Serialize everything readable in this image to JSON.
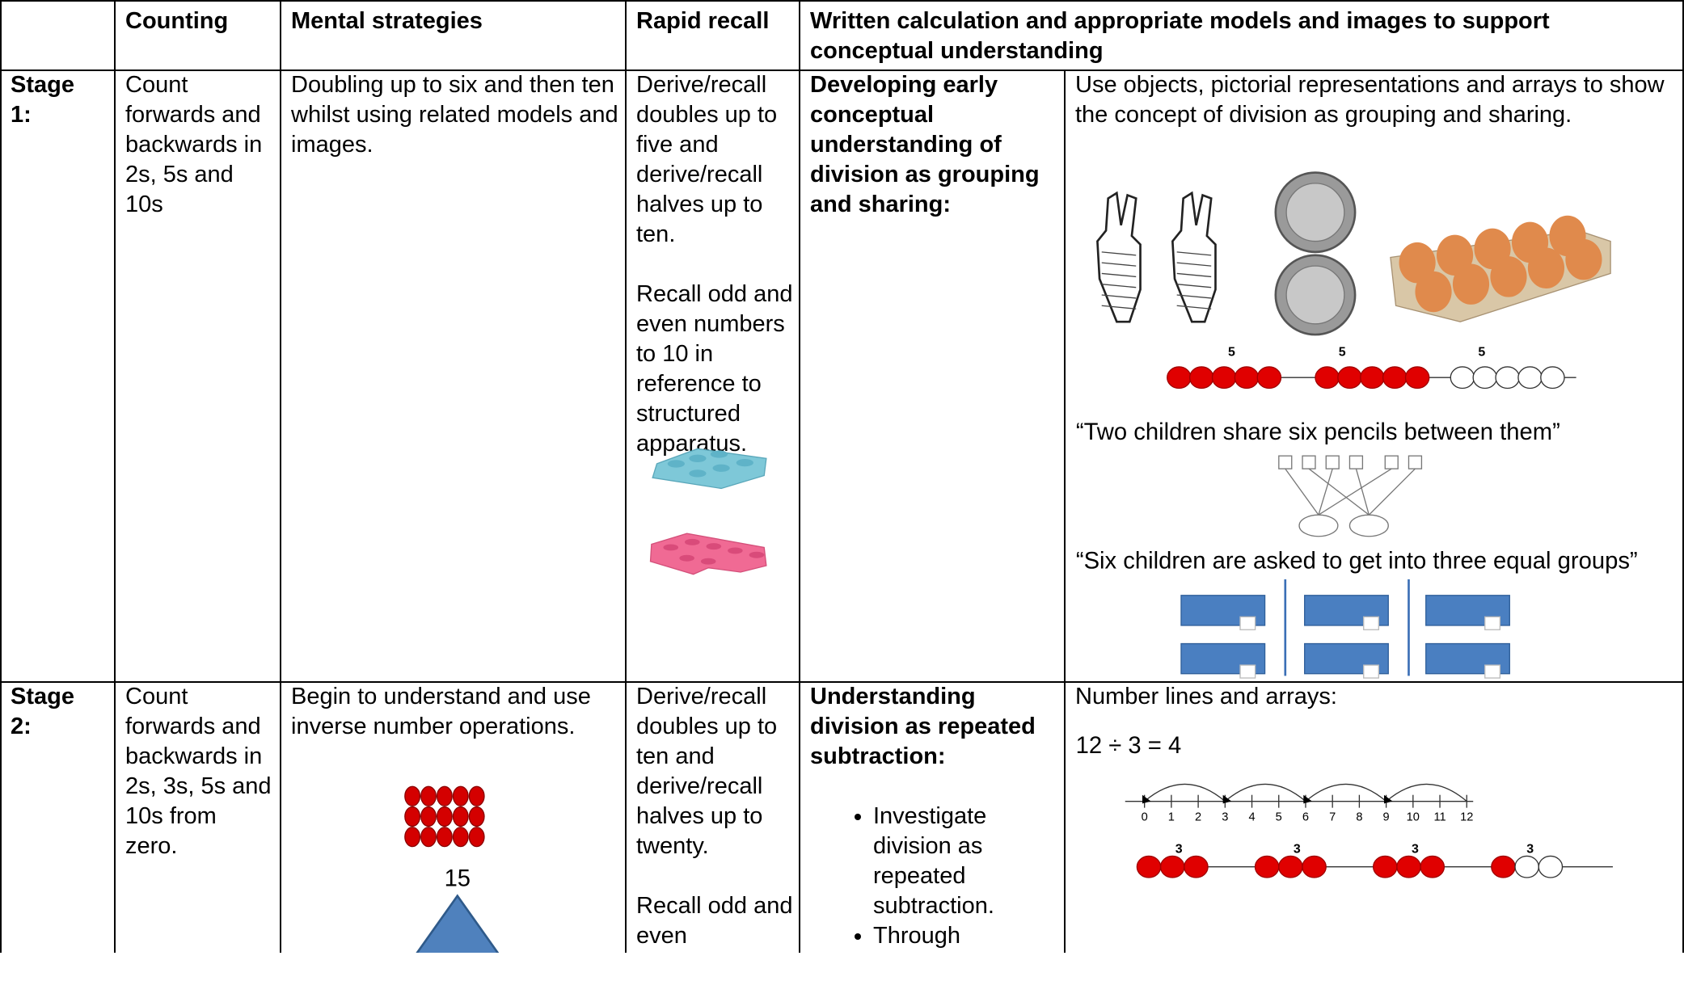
{
  "header": {
    "columns": [
      "Counting",
      "Mental strategies",
      "Rapid recall",
      "Written calculation and appropriate models and images to support conceptual understanding"
    ]
  },
  "stages": [
    {
      "stage": "Stage 1:",
      "counting": "Count forwards and backwards in 2s, 5s and 10s",
      "mental": "Doubling up to six and then ten whilst using related models and images.",
      "rapid_recall": [
        "Derive/recall doubles up to five and derive/recall halves up to ten.",
        "Recall odd and even numbers to 10 in reference to structured apparatus."
      ],
      "written_heading": "Developing early conceptual understanding of division as grouping and sharing:",
      "written_detail": "Use objects, pictorial representations and arrays to show the concept of division as grouping and sharing.",
      "bead_labels": [
        "5",
        "5",
        "5"
      ],
      "quotes": [
        "“Two children share six pencils between them”",
        "“Six children are asked to get into three equal groups”"
      ]
    },
    {
      "stage": "Stage 2:",
      "counting": "Count forwards and backwards in 2s, 3s, 5s and 10s from zero.",
      "mental": "Begin to understand and use inverse number operations.",
      "array_total": "15",
      "rapid_recall": [
        "Derive/recall doubles up to ten and derive/recall halves up to twenty.",
        "Recall odd and even"
      ],
      "written_heading": "Understanding division as repeated subtraction:",
      "written_bullets": [
        "Investigate division as repeated subtraction.",
        "Through"
      ],
      "written_detail": "Number lines and arrays:",
      "equation": "12 ÷ 3 = 4",
      "number_line": [
        0,
        1,
        2,
        3,
        4,
        5,
        6,
        7,
        8,
        9,
        10,
        11,
        12
      ],
      "bead_labels": [
        "3",
        "3",
        "3",
        "3"
      ]
    }
  ]
}
